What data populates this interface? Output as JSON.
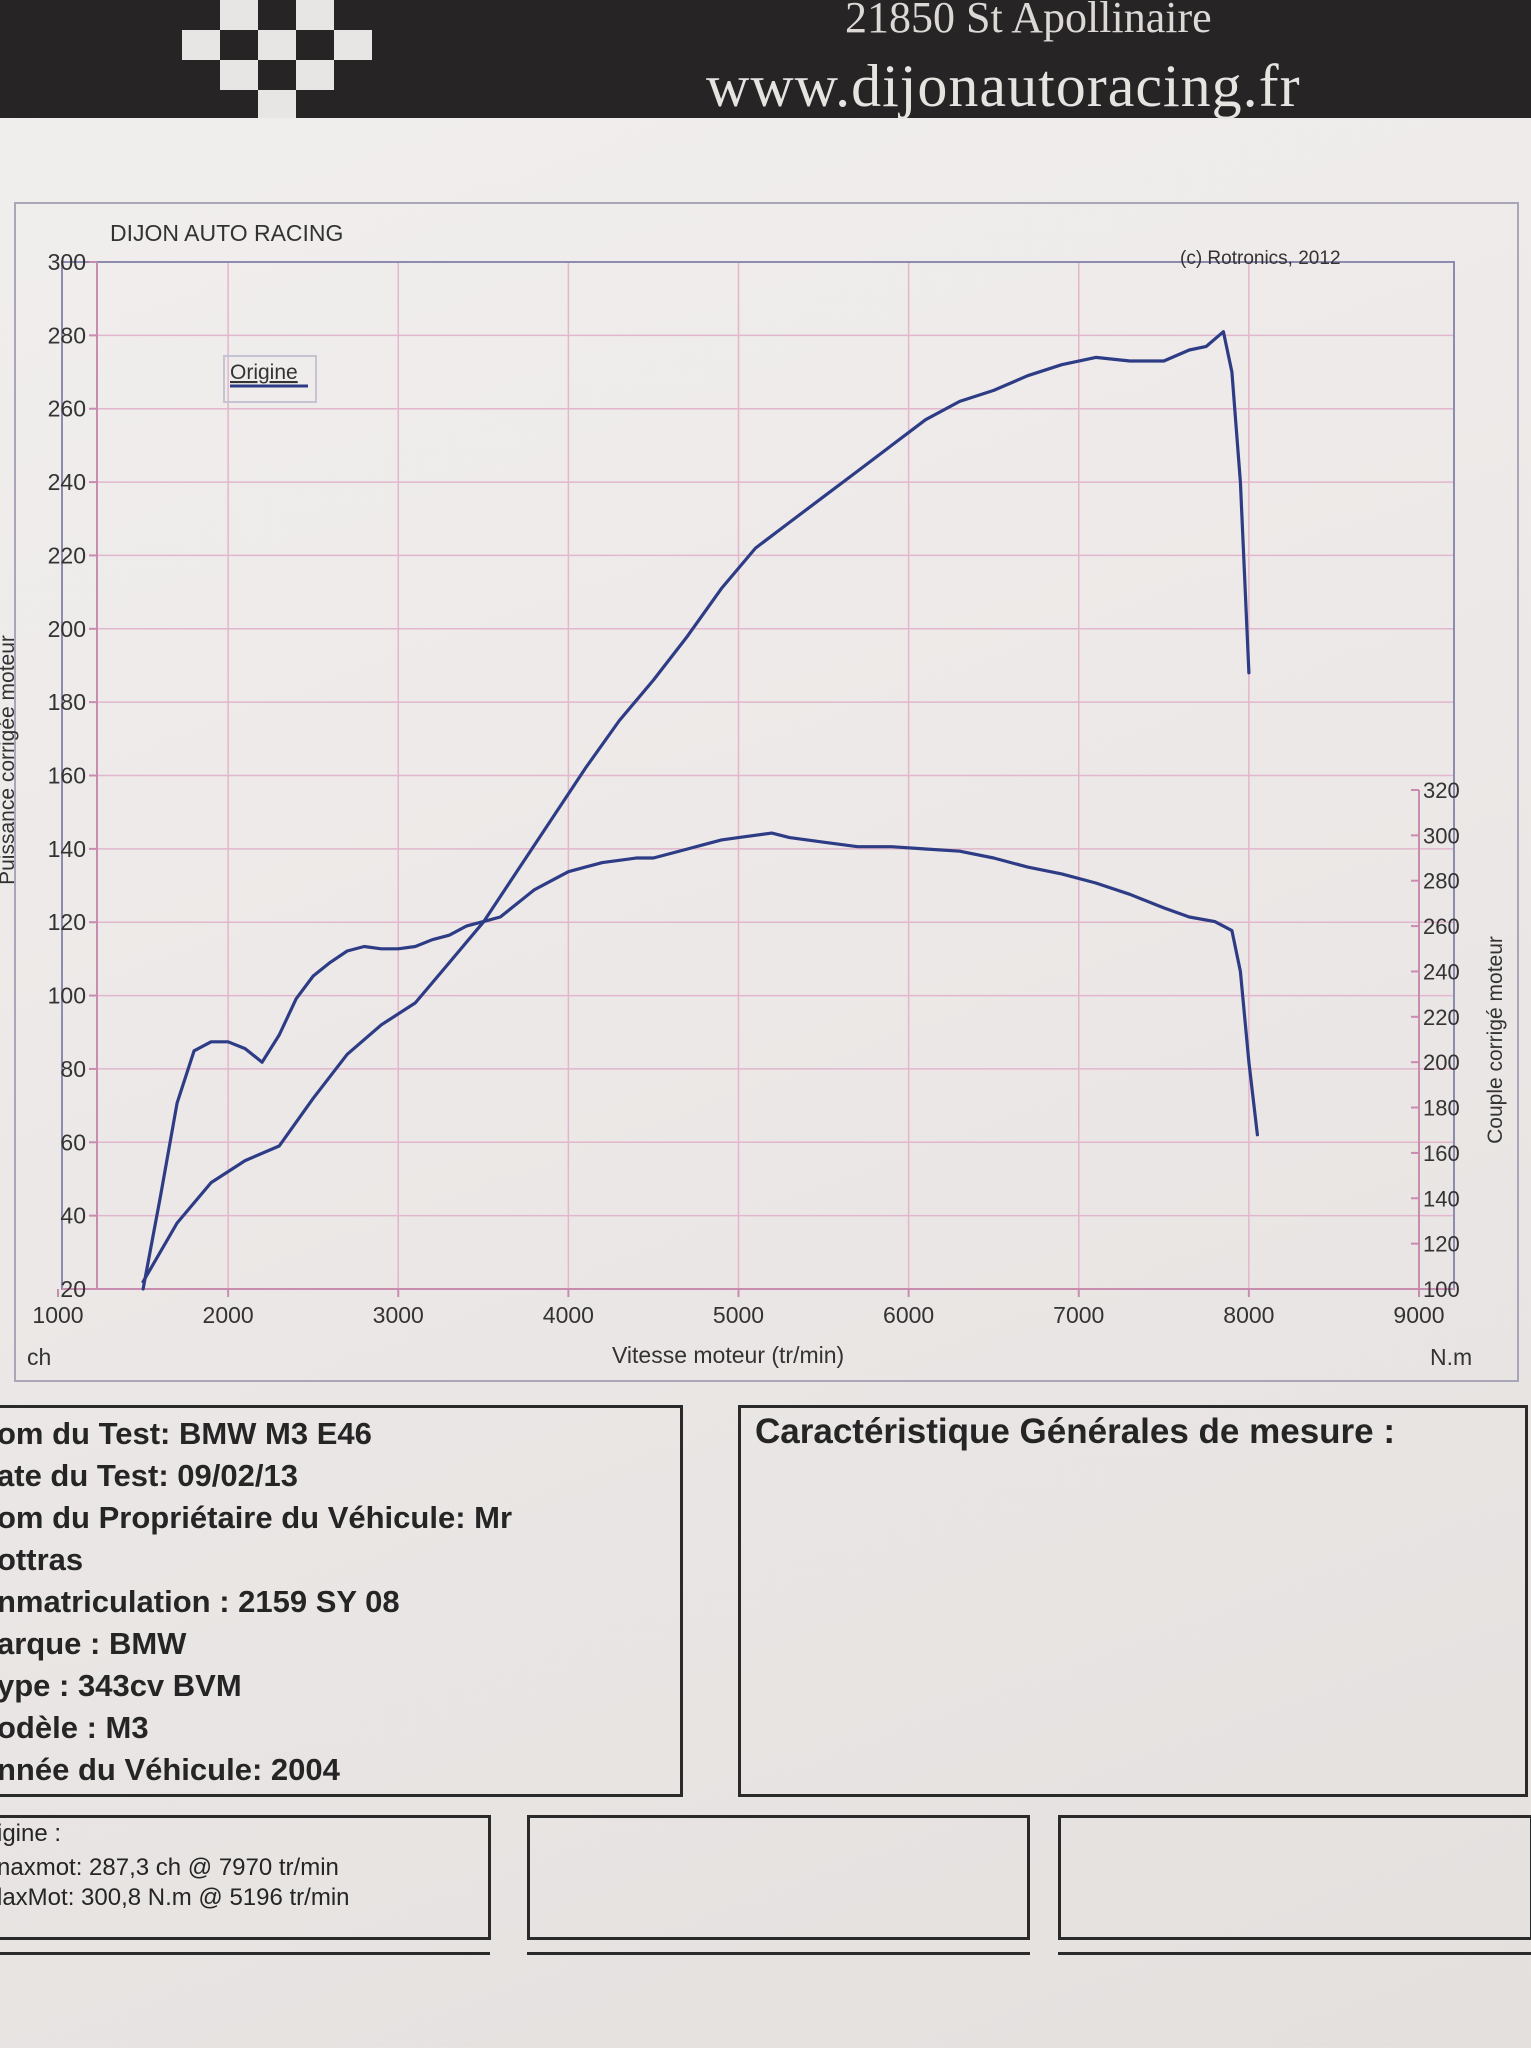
{
  "header": {
    "address": "21850 St Apollinaire",
    "url": "www.dijonautoracing.fr"
  },
  "chart_data": {
    "type": "line",
    "title": "DIJON AUTO RACING",
    "copyright": "(c) Rotronics, 2012",
    "legend": [
      "Origine"
    ],
    "legend_placement": "top-left",
    "grid": true,
    "xlabel": "Vitesse moteur (tr/min)",
    "xlim": [
      1000,
      9000
    ],
    "x_ticks": [
      "1000",
      "2000",
      "3000",
      "4000",
      "5000",
      "6000",
      "7000",
      "8000",
      "9000"
    ],
    "x_unit_left": "ch",
    "x_unit_right": "N.m",
    "ylabel_left": "Puissance corrigée moteur",
    "ylim_left": [
      20,
      300
    ],
    "y_ticks_left": [
      "20",
      "40",
      "60",
      "80",
      "100",
      "120",
      "140",
      "160",
      "180",
      "200",
      "220",
      "240",
      "260",
      "280",
      "300"
    ],
    "ylabel_right": "Couple corrigé moteur",
    "ylim_right": [
      100,
      320
    ],
    "y_ticks_right": [
      "100",
      "120",
      "140",
      "160",
      "180",
      "200",
      "220",
      "240",
      "260",
      "280",
      "300",
      "320"
    ],
    "series": [
      {
        "axis": "left",
        "x": [
          1500,
          1700,
          1900,
          2100,
          2300,
          2500,
          2700,
          2900,
          3100,
          3300,
          3500,
          3700,
          3900,
          4100,
          4300,
          4500,
          4700,
          4900,
          5100,
          5300,
          5500,
          5700,
          5900,
          6100,
          6300,
          6500,
          6700,
          6900,
          7100,
          7300,
          7500,
          7650,
          7750,
          7850,
          7900,
          7950,
          8000
        ],
        "values": [
          22,
          38,
          49,
          55,
          59,
          72,
          84,
          92,
          98,
          109,
          120,
          134,
          148,
          162,
          175,
          186,
          198,
          211,
          222,
          229,
          236,
          243,
          250,
          257,
          262,
          265,
          269,
          272,
          274,
          273,
          273,
          276,
          277,
          281,
          270,
          240,
          188
        ]
      },
      {
        "axis": "right",
        "x": [
          1500,
          1600,
          1700,
          1800,
          1900,
          2000,
          2100,
          2200,
          2300,
          2400,
          2500,
          2600,
          2700,
          2800,
          2900,
          3000,
          3100,
          3200,
          3300,
          3400,
          3500,
          3600,
          3700,
          3800,
          3900,
          4000,
          4100,
          4200,
          4300,
          4400,
          4500,
          4600,
          4700,
          4800,
          4900,
          5000,
          5196,
          5300,
          5500,
          5700,
          5900,
          6100,
          6300,
          6500,
          6700,
          6900,
          7100,
          7300,
          7500,
          7650,
          7800,
          7900,
          7950,
          8000,
          8050
        ],
        "values": [
          100,
          140,
          182,
          205,
          209,
          209,
          206,
          200,
          212,
          228,
          238,
          244,
          249,
          251,
          250,
          250,
          251,
          254,
          256,
          260,
          262,
          264,
          270,
          276,
          280,
          284,
          286,
          288,
          289,
          290,
          290,
          292,
          294,
          296,
          298,
          299,
          301,
          299,
          297,
          295,
          295,
          294,
          293,
          290,
          286,
          283,
          279,
          274,
          268,
          264,
          262,
          258,
          240,
          200,
          168
        ]
      }
    ]
  },
  "test_info": {
    "nom_test": "om du Test: BMW M3 E46",
    "date_test": "ate du Test: 09/02/13",
    "proprietaire_1": "om du Propriétaire du Véhicule: Mr",
    "proprietaire_2": "ottras",
    "immatriculation": "nmatriculation  : 2159 SY 08",
    "marque": "arque  : BMW",
    "type": "ype  : 343cv BVM",
    "modele": "odèle  : M3",
    "annee": "nnée du Véhicule: 2004"
  },
  "general": {
    "title": "Caractéristique Générales de mesure :"
  },
  "results": {
    "header": "igine :",
    "pmax": "naxmot: 287,3 ch @ 7970 tr/min",
    "cmax": "laxMot: 300,8 N.m @ 5196 tr/min"
  },
  "colors": {
    "curve": "#2e3c86",
    "grid": "#e2b6cc",
    "frame": "#8e8cae",
    "text": "#252525"
  }
}
